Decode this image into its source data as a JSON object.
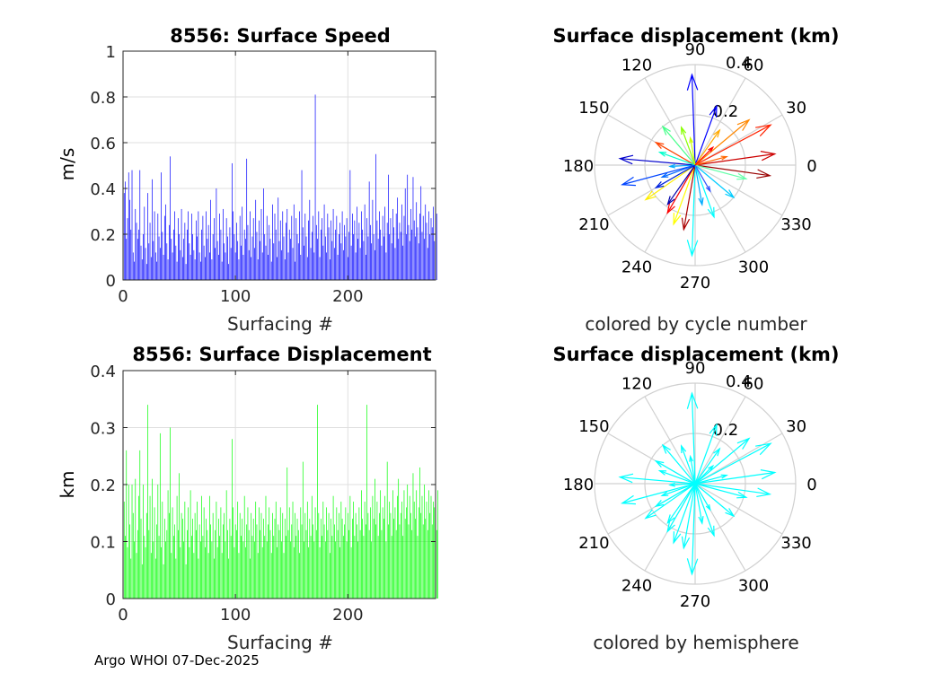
{
  "footer": "Argo WHOI 07-Dec-2025",
  "chart_data": [
    {
      "type": "bar",
      "title": "8556: Surface Speed",
      "xlabel": "Surfacing #",
      "ylabel": "m/s",
      "xlim": [
        0,
        278
      ],
      "ylim": [
        0,
        1
      ],
      "xticks": [
        0,
        100,
        200
      ],
      "yticks": [
        0,
        0.2,
        0.4,
        0.6,
        0.8,
        1
      ],
      "grid": true,
      "color": "#0000ff",
      "n": 278,
      "values": [
        0.38,
        0.43,
        0.18,
        0.27,
        0.47,
        0.35,
        0.22,
        0.48,
        0.12,
        0.08,
        0.31,
        0.25,
        0.18,
        0.22,
        0.48,
        0.15,
        0.09,
        0.2,
        0.32,
        0.14,
        0.07,
        0.38,
        0.16,
        0.25,
        0.1,
        0.44,
        0.17,
        0.3,
        0.12,
        0.08,
        0.29,
        0.19,
        0.14,
        0.47,
        0.21,
        0.11,
        0.28,
        0.33,
        0.16,
        0.09,
        0.24,
        0.54,
        0.18,
        0.12,
        0.22,
        0.3,
        0.15,
        0.08,
        0.27,
        0.2,
        0.13,
        0.31,
        0.1,
        0.18,
        0.25,
        0.07,
        0.22,
        0.3,
        0.16,
        0.11,
        0.29,
        0.2,
        0.13,
        0.09,
        0.26,
        0.19,
        0.3,
        0.12,
        0.08,
        0.22,
        0.28,
        0.15,
        0.1,
        0.3,
        0.18,
        0.24,
        0.12,
        0.35,
        0.09,
        0.2,
        0.27,
        0.14,
        0.4,
        0.17,
        0.11,
        0.29,
        0.22,
        0.08,
        0.31,
        0.16,
        0.12,
        0.27,
        0.19,
        0.07,
        0.23,
        0.14,
        0.51,
        0.3,
        0.2,
        0.12,
        0.25,
        0.17,
        0.09,
        0.28,
        0.15,
        0.32,
        0.11,
        0.22,
        0.18,
        0.53,
        0.24,
        0.13,
        0.3,
        0.1,
        0.19,
        0.27,
        0.14,
        0.35,
        0.21,
        0.09,
        0.26,
        0.17,
        0.31,
        0.12,
        0.4,
        0.2,
        0.15,
        0.28,
        0.11,
        0.24,
        0.18,
        0.08,
        0.33,
        0.16,
        0.29,
        0.22,
        0.1,
        0.36,
        0.17,
        0.26,
        0.13,
        0.3,
        0.19,
        0.09,
        0.25,
        0.31,
        0.12,
        0.22,
        0.18,
        0.28,
        0.14,
        0.33,
        0.08,
        0.27,
        0.2,
        0.16,
        0.3,
        0.11,
        0.48,
        0.23,
        0.15,
        0.29,
        0.19,
        0.1,
        0.26,
        0.35,
        0.14,
        0.21,
        0.28,
        0.12,
        0.81,
        0.24,
        0.18,
        0.3,
        0.1,
        0.22,
        0.27,
        0.15,
        0.33,
        0.19,
        0.12,
        0.29,
        0.23,
        0.09,
        0.26,
        0.17,
        0.31,
        0.14,
        0.22,
        0.28,
        0.11,
        0.2,
        0.25,
        0.16,
        0.3,
        0.13,
        0.24,
        0.19,
        0.27,
        0.1,
        0.21,
        0.48,
        0.15,
        0.29,
        0.2,
        0.26,
        0.12,
        0.32,
        0.18,
        0.25,
        0.14,
        0.3,
        0.22,
        0.17,
        0.33,
        0.11,
        0.27,
        0.19,
        0.43,
        0.24,
        0.16,
        0.35,
        0.2,
        0.13,
        0.55,
        0.26,
        0.18,
        0.3,
        0.22,
        0.15,
        0.28,
        0.19,
        0.32,
        0.12,
        0.25,
        0.46,
        0.2,
        0.27,
        0.16,
        0.31,
        0.23,
        0.14,
        0.29,
        0.36,
        0.18,
        0.25,
        0.21,
        0.33,
        0.15,
        0.28,
        0.4,
        0.2,
        0.46,
        0.24,
        0.17,
        0.31,
        0.22,
        0.45,
        0.26,
        0.19,
        0.34,
        0.23,
        0.16,
        0.29,
        0.41,
        0.21,
        0.28,
        0.18,
        0.33,
        0.25,
        0.14,
        0.3,
        0.2,
        0.27,
        0.23,
        0.32,
        0.17,
        0.26,
        0.29
      ]
    },
    {
      "type": "bar",
      "title": "8556: Surface Displacement",
      "xlabel": "Surfacing #",
      "ylabel": "km",
      "xlim": [
        0,
        278
      ],
      "ylim": [
        0,
        0.4
      ],
      "xticks": [
        0,
        100,
        200
      ],
      "yticks": [
        0,
        0.1,
        0.2,
        0.3,
        0.4
      ],
      "grid": true,
      "color": "#00ff00",
      "n": 278,
      "values": [
        0.17,
        0.11,
        0.26,
        0.09,
        0.2,
        0.13,
        0.07,
        0.2,
        0.15,
        0.1,
        0.21,
        0.08,
        0.12,
        0.18,
        0.26,
        0.14,
        0.06,
        0.2,
        0.11,
        0.09,
        0.15,
        0.34,
        0.12,
        0.18,
        0.08,
        0.21,
        0.1,
        0.16,
        0.07,
        0.13,
        0.2,
        0.11,
        0.29,
        0.09,
        0.17,
        0.06,
        0.14,
        0.1,
        0.12,
        0.19,
        0.15,
        0.3,
        0.08,
        0.16,
        0.11,
        0.13,
        0.07,
        0.18,
        0.12,
        0.22,
        0.09,
        0.15,
        0.14,
        0.1,
        0.17,
        0.06,
        0.12,
        0.16,
        0.09,
        0.19,
        0.11,
        0.14,
        0.08,
        0.15,
        0.12,
        0.17,
        0.07,
        0.13,
        0.1,
        0.18,
        0.11,
        0.16,
        0.09,
        0.14,
        0.12,
        0.08,
        0.18,
        0.13,
        0.1,
        0.15,
        0.07,
        0.12,
        0.17,
        0.09,
        0.14,
        0.11,
        0.16,
        0.08,
        0.13,
        0.15,
        0.1,
        0.19,
        0.12,
        0.07,
        0.14,
        0.11,
        0.28,
        0.16,
        0.09,
        0.13,
        0.12,
        0.17,
        0.08,
        0.15,
        0.11,
        0.14,
        0.1,
        0.18,
        0.09,
        0.13,
        0.16,
        0.12,
        0.07,
        0.15,
        0.11,
        0.14,
        0.1,
        0.17,
        0.13,
        0.08,
        0.16,
        0.12,
        0.15,
        0.09,
        0.14,
        0.11,
        0.18,
        0.1,
        0.13,
        0.16,
        0.12,
        0.08,
        0.15,
        0.11,
        0.14,
        0.17,
        0.09,
        0.13,
        0.12,
        0.16,
        0.1,
        0.15,
        0.08,
        0.14,
        0.11,
        0.23,
        0.12,
        0.16,
        0.1,
        0.13,
        0.17,
        0.09,
        0.15,
        0.11,
        0.14,
        0.12,
        0.08,
        0.16,
        0.13,
        0.24,
        0.1,
        0.15,
        0.12,
        0.17,
        0.09,
        0.14,
        0.11,
        0.18,
        0.13,
        0.1,
        0.16,
        0.12,
        0.34,
        0.15,
        0.09,
        0.14,
        0.11,
        0.17,
        0.13,
        0.1,
        0.16,
        0.12,
        0.15,
        0.08,
        0.14,
        0.11,
        0.18,
        0.13,
        0.1,
        0.16,
        0.12,
        0.15,
        0.09,
        0.17,
        0.14,
        0.11,
        0.13,
        0.16,
        0.1,
        0.15,
        0.12,
        0.18,
        0.09,
        0.14,
        0.17,
        0.11,
        0.15,
        0.13,
        0.1,
        0.16,
        0.12,
        0.19,
        0.14,
        0.11,
        0.17,
        0.13,
        0.34,
        0.15,
        0.12,
        0.16,
        0.1,
        0.18,
        0.14,
        0.21,
        0.13,
        0.17,
        0.11,
        0.15,
        0.19,
        0.12,
        0.16,
        0.14,
        0.18,
        0.1,
        0.24,
        0.13,
        0.17,
        0.15,
        0.11,
        0.19,
        0.14,
        0.16,
        0.12,
        0.18,
        0.21,
        0.13,
        0.15,
        0.17,
        0.11,
        0.19,
        0.14,
        0.16,
        0.2,
        0.13,
        0.18,
        0.15,
        0.12,
        0.22,
        0.17,
        0.14,
        0.19,
        0.11,
        0.16,
        0.23,
        0.15,
        0.18,
        0.13,
        0.2,
        0.14,
        0.17,
        0.12,
        0.19,
        0.15,
        0.18,
        0.13,
        0.17,
        0.16,
        0.14,
        0.12,
        0.19
      ]
    },
    {
      "type": "polar-compass",
      "title": "Surface displacement (km)",
      "subtitle": "colored by cycle number",
      "rmax": 0.4,
      "rticks": [
        0.2,
        0.4
      ],
      "rtick_labels": [
        "0.2",
        "0.4"
      ],
      "theta_labels": [
        "0",
        "30",
        "60",
        "90",
        "120",
        "150",
        "180",
        "210",
        "240",
        "270",
        "300",
        "330"
      ],
      "colormap": "jet",
      "arrows": [
        {
          "r": 0.1,
          "theta": 183,
          "color": "#00aaff"
        },
        {
          "r": 0.36,
          "theta": 92,
          "color": "#0000ff"
        },
        {
          "r": 0.3,
          "theta": 175,
          "color": "#0000cc"
        },
        {
          "r": 0.36,
          "theta": 268,
          "color": "#00ffff"
        },
        {
          "r": 0.34,
          "theta": 28,
          "color": "#ff2200"
        },
        {
          "r": 0.32,
          "theta": 8,
          "color": "#cc0000"
        },
        {
          "r": 0.3,
          "theta": -8,
          "color": "#990000"
        },
        {
          "r": 0.28,
          "theta": 40,
          "color": "#ff8800"
        },
        {
          "r": 0.25,
          "theta": 250,
          "color": "#ffff00"
        },
        {
          "r": 0.24,
          "theta": 215,
          "color": "#ffee00"
        },
        {
          "r": 0.22,
          "theta": 290,
          "color": "#00ffff"
        },
        {
          "r": 0.3,
          "theta": 195,
          "color": "#0044ff"
        },
        {
          "r": 0.2,
          "theta": 130,
          "color": "#44ff88"
        },
        {
          "r": 0.25,
          "theta": 70,
          "color": "#0000ff"
        },
        {
          "r": 0.2,
          "theta": 320,
          "color": "#00ccff"
        },
        {
          "r": 0.26,
          "theta": 260,
          "color": "#aa0000"
        },
        {
          "r": 0.18,
          "theta": 150,
          "color": "#ff4400"
        },
        {
          "r": 0.22,
          "theta": 240,
          "color": "#ff0000"
        },
        {
          "r": 0.16,
          "theta": 110,
          "color": "#88ff00"
        },
        {
          "r": 0.21,
          "theta": 345,
          "color": "#66ffaa"
        },
        {
          "r": 0.14,
          "theta": 200,
          "color": "#0066ff"
        },
        {
          "r": 0.17,
          "theta": 55,
          "color": "#ffaa00"
        },
        {
          "r": 0.12,
          "theta": 300,
          "color": "#3355ff"
        },
        {
          "r": 0.19,
          "theta": 235,
          "color": "#0000aa"
        },
        {
          "r": 0.15,
          "theta": 160,
          "color": "#00ffcc"
        },
        {
          "r": 0.13,
          "theta": 15,
          "color": "#ff6600"
        },
        {
          "r": 0.16,
          "theta": 280,
          "color": "#00aaff"
        },
        {
          "r": 0.11,
          "theta": 100,
          "color": "#ccff00"
        },
        {
          "r": 0.18,
          "theta": 210,
          "color": "#0022dd"
        },
        {
          "r": 0.1,
          "theta": 45,
          "color": "#ff0000"
        }
      ]
    },
    {
      "type": "polar-compass",
      "title": "Surface displacement (km)",
      "subtitle": "colored by hemisphere",
      "rmax": 0.4,
      "rticks": [
        0.2,
        0.4
      ],
      "rtick_labels": [
        "0.2",
        "0.4"
      ],
      "theta_labels": [
        "0",
        "30",
        "60",
        "90",
        "120",
        "150",
        "180",
        "210",
        "240",
        "270",
        "300",
        "330"
      ],
      "colormap": "single",
      "color": "#00ffff",
      "arrows": [
        {
          "r": 0.36,
          "theta": 268
        },
        {
          "r": 0.34,
          "theta": 28
        },
        {
          "r": 0.32,
          "theta": 8
        },
        {
          "r": 0.3,
          "theta": -8
        },
        {
          "r": 0.3,
          "theta": 175
        },
        {
          "r": 0.36,
          "theta": 92
        },
        {
          "r": 0.28,
          "theta": 40
        },
        {
          "r": 0.25,
          "theta": 250
        },
        {
          "r": 0.24,
          "theta": 215
        },
        {
          "r": 0.22,
          "theta": 290
        },
        {
          "r": 0.3,
          "theta": 195
        },
        {
          "r": 0.2,
          "theta": 130
        },
        {
          "r": 0.25,
          "theta": 70
        },
        {
          "r": 0.2,
          "theta": 320
        },
        {
          "r": 0.26,
          "theta": 260
        },
        {
          "r": 0.18,
          "theta": 150
        },
        {
          "r": 0.22,
          "theta": 240
        },
        {
          "r": 0.16,
          "theta": 110
        },
        {
          "r": 0.21,
          "theta": 345
        },
        {
          "r": 0.14,
          "theta": 200
        },
        {
          "r": 0.17,
          "theta": 55
        },
        {
          "r": 0.12,
          "theta": 300
        },
        {
          "r": 0.19,
          "theta": 235
        },
        {
          "r": 0.15,
          "theta": 160
        },
        {
          "r": 0.13,
          "theta": 15
        },
        {
          "r": 0.16,
          "theta": 280
        },
        {
          "r": 0.11,
          "theta": 100
        },
        {
          "r": 0.18,
          "theta": 210
        },
        {
          "r": 0.1,
          "theta": 45
        },
        {
          "r": 0.1,
          "theta": 183
        }
      ]
    }
  ]
}
